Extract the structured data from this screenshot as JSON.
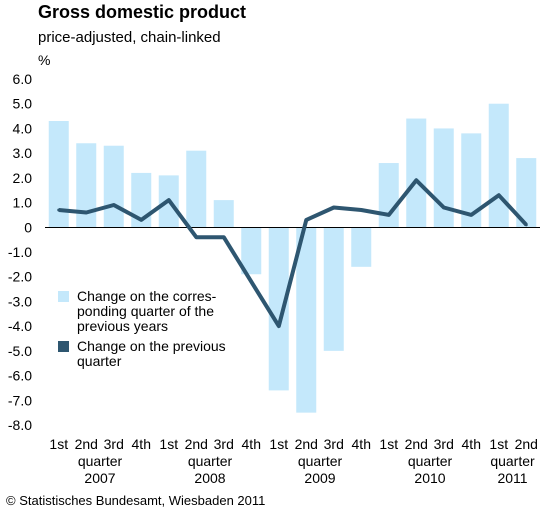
{
  "header": {
    "title": "Gross domestic product",
    "subtitle": "price-adjusted, chain-linked",
    "unit": "%"
  },
  "footer": {
    "copyright": "© Statistisches Bundesamt, Wiesbaden 2011"
  },
  "colors": {
    "bar": "#c4e8fb",
    "line": "#2e5670",
    "zero_line": "#000000",
    "grid": "#cccccc"
  },
  "chart_data": {
    "type": "bar",
    "categories": [
      "1st",
      "2nd",
      "3rd",
      "4th",
      "1st",
      "2nd",
      "3rd",
      "4th",
      "1st",
      "2nd",
      "3rd",
      "4th",
      "1st",
      "2nd",
      "3rd",
      "4th",
      "1st",
      "2nd"
    ],
    "years": [
      {
        "line1": "quarter",
        "line2": "2007",
        "start": 0,
        "end": 3
      },
      {
        "line1": "quarter",
        "line2": "2008",
        "start": 4,
        "end": 7
      },
      {
        "line1": "quarter",
        "line2": "2009",
        "start": 8,
        "end": 11
      },
      {
        "line1": "quarter",
        "line2": "2010",
        "start": 12,
        "end": 15
      },
      {
        "line1": "quarter",
        "line2": "2011",
        "start": 16,
        "end": 17
      }
    ],
    "yticks": [
      "6.0",
      "5.0",
      "4.0",
      "3.0",
      "2.0",
      "1.0",
      "0",
      "-1.0",
      "-2.0",
      "-3.0",
      "-4.0",
      "-5.0",
      "-6.0",
      "-7.0",
      "-8.0"
    ],
    "ylim": [
      -8,
      6
    ],
    "series": [
      {
        "name": "Change on the corres- ponding quarter of the previous years",
        "name_lines": [
          "Change on the corres-",
          "ponding quarter of the",
          "previous years"
        ],
        "kind": "bar",
        "values": [
          4.3,
          3.4,
          3.3,
          2.2,
          2.1,
          3.1,
          1.1,
          -1.9,
          -6.6,
          -7.5,
          -5.0,
          -1.6,
          2.6,
          4.4,
          4.0,
          3.8,
          5.0,
          2.8
        ]
      },
      {
        "name": "Change on the previous quarter",
        "name_lines": [
          "Change on the previous",
          "quarter"
        ],
        "kind": "line",
        "values": [
          0.7,
          0.6,
          0.9,
          0.3,
          1.1,
          -0.4,
          -0.4,
          -2.2,
          -4.0,
          0.3,
          0.8,
          0.7,
          0.5,
          1.9,
          0.8,
          0.5,
          1.3,
          0.1
        ]
      }
    ]
  }
}
